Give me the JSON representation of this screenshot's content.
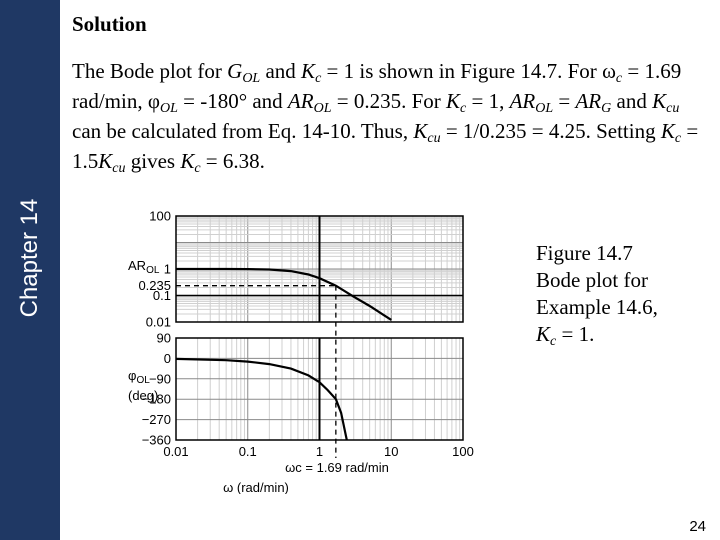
{
  "sidebar": {
    "chapter_label": "Chapter 14"
  },
  "heading": "Solution",
  "paragraph": {
    "t1": "The Bode plot for ",
    "g_var": "G",
    "ol_sub_1": "OL",
    "t2": " and ",
    "kc_var_1": "K",
    "kc_sub_1": "c",
    "t3": " = 1 is shown in Figure 14.7. For ",
    "omega_sym": "ω",
    "omega_sub": "c",
    "t4": " = 1.69 rad/min, ",
    "phi_sym": "φ",
    "phi_sub": "OL",
    "t5": " = -180° and ",
    "ar_var_1": "AR",
    "ar_sub_1": "OL",
    "t6": " = 0.235. For ",
    "kc_var_2": "K",
    "kc_sub_2": "c",
    "t7": " = 1, ",
    "ar_var_2": "AR",
    "ar_sub_2": "OL",
    "t8": " = ",
    "ar_var_3": "AR",
    "ar_sub_3": "G",
    "t9": " and ",
    "kcu_var_1": "K",
    "kcu_sub_1": "cu",
    "t10": " can be calculated from Eq. 14-10. Thus,   ",
    "kcu_var_2": "K",
    "kcu_sub_2": "cu",
    "t11": " = 1/0.235 = 4.25. Setting ",
    "kc_var_3": "K",
    "kc_sub_3": "c",
    "t12": " = 1.5",
    "kcu_var_3": "K",
    "kcu_sub_3": "cu",
    "t13": " gives ",
    "kc_var_4": "K",
    "kc_sub_4": "c",
    "t14": " = 6.38."
  },
  "caption": {
    "line1": "Figure 14.7",
    "line2": "Bode plot for",
    "line3": "Example 14.6,",
    "kc_var": "K",
    "kc_sub": "c",
    "line4_tail": " = 1."
  },
  "page_number": "24",
  "chart_data": {
    "type": "line",
    "x_scale": "log",
    "xlim": [
      0.01,
      100
    ],
    "x_ticks": [
      "0.01",
      "0.1",
      "1",
      "10",
      "100"
    ],
    "xlabel": "ω (rad/min)",
    "crossover_annotation": "ωc = 1.69 rad/min",
    "crossover_frequency": 1.69,
    "grid": true,
    "panels": [
      {
        "name": "amplitude ratio",
        "ylabel": "AR",
        "ylabel_sub": "OL",
        "y_scale": "log",
        "ylim": [
          0.01,
          100
        ],
        "y_ticks": [
          "100",
          "1",
          "0.235",
          "0.1",
          "0.01"
        ],
        "marked_value": 0.235,
        "x": [
          0.01,
          0.05,
          0.1,
          0.2,
          0.4,
          0.7,
          1.0,
          1.69,
          3.0,
          5.0,
          10.0
        ],
        "y": [
          1.0,
          1.0,
          0.99,
          0.96,
          0.83,
          0.62,
          0.45,
          0.235,
          0.09,
          0.04,
          0.012
        ]
      },
      {
        "name": "phase angle",
        "ylabel": "φ",
        "ylabel_sub": "OL",
        "ylabel_unit": "(deg)",
        "y_scale": "linear",
        "ylim": [
          -360,
          90
        ],
        "y_ticks": [
          "90",
          "0",
          "−90",
          "−180",
          "−270",
          "−360"
        ],
        "x": [
          0.01,
          0.05,
          0.1,
          0.2,
          0.4,
          0.7,
          1.0,
          1.3,
          1.69,
          2.0,
          2.4
        ],
        "y": [
          -2,
          -8,
          -14,
          -25,
          -45,
          -75,
          -105,
          -140,
          -180,
          -240,
          -360
        ]
      }
    ]
  }
}
